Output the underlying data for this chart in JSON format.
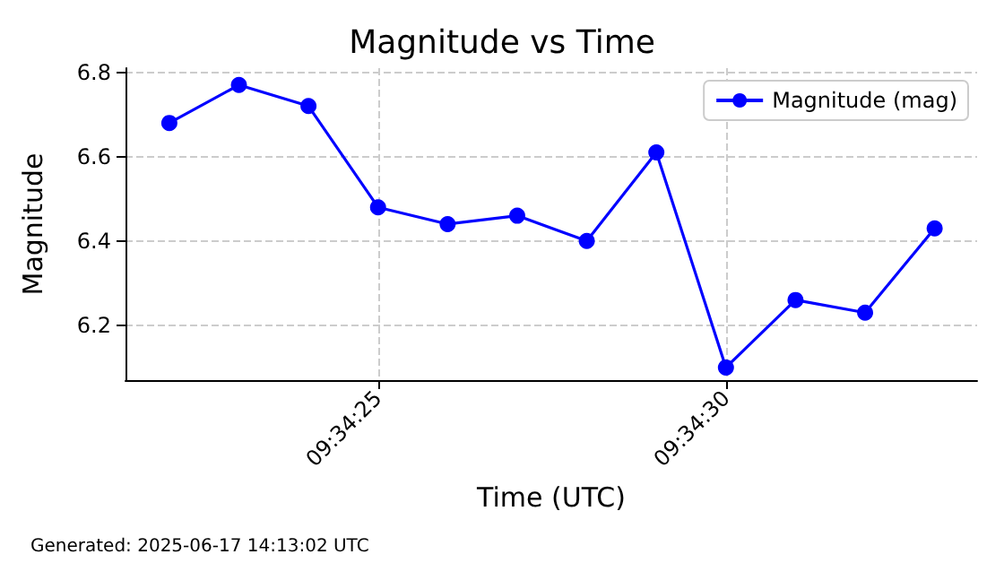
{
  "chart_data": {
    "type": "line",
    "title": "Magnitude vs Time",
    "xlabel": "Time (UTC)",
    "ylabel": "Magnitude",
    "annotations": [
      "Generated: 2025-06-17 14:13:02 UTC"
    ],
    "x": [
      9.5727778,
      9.5730556,
      9.5733333,
      9.5736111,
      9.5738889,
      9.5741667,
      9.5744444,
      9.5747222,
      9.575,
      9.5752778,
      9.5755556,
      9.5758333
    ],
    "series": [
      {
        "name": "Magnitude (mag)",
        "color": "#0000ff",
        "values": [
          6.68,
          6.77,
          6.72,
          6.48,
          6.44,
          6.46,
          6.4,
          6.61,
          6.1,
          6.26,
          6.23,
          6.43
        ]
      }
    ],
    "xlim": [
      9.5726028,
      9.5760028
    ],
    "xticks": [
      {
        "value": 9.5736111,
        "label": "09:34:25"
      },
      {
        "value": 9.575,
        "label": "09:34:30"
      }
    ],
    "ylim": [
      6.07,
      6.81
    ],
    "yticks": [
      6.2,
      6.4,
      6.6,
      6.8
    ],
    "grid": true,
    "legend": "top right",
    "marker": "circle",
    "line_style": "solid"
  }
}
